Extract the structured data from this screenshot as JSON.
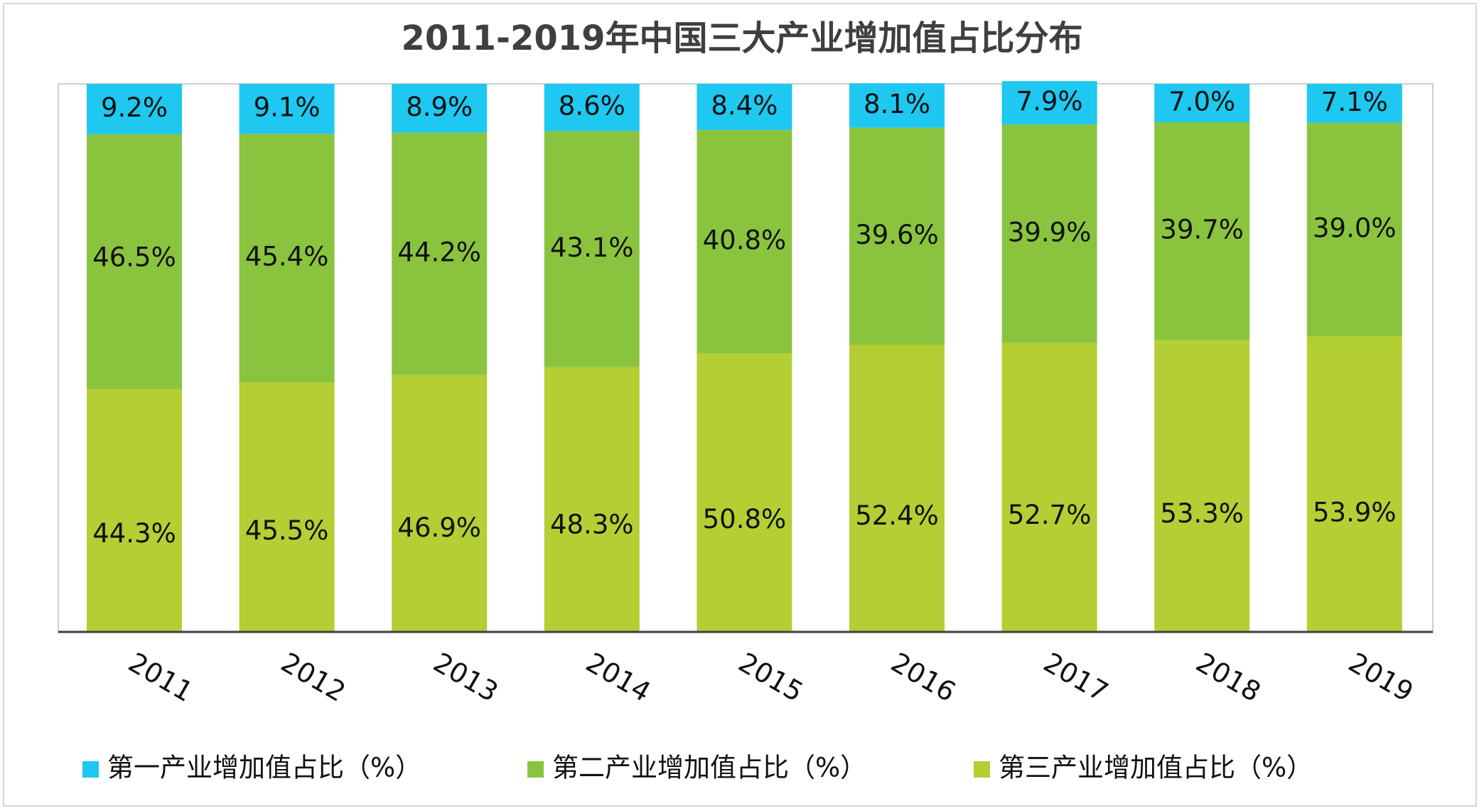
{
  "chart_data": {
    "type": "bar",
    "stacked": true,
    "title": "2011-2019年中国三大产业增加值占比分布",
    "categories": [
      "2011",
      "2012",
      "2013",
      "2014",
      "2015",
      "2016",
      "2017",
      "2018",
      "2019"
    ],
    "series": [
      {
        "name": "第三产业增加值占比（%）",
        "color": "#b3cf33",
        "values": [
          44.3,
          45.5,
          46.9,
          48.3,
          50.8,
          52.4,
          52.7,
          53.3,
          53.9
        ],
        "labels": [
          "44.3%",
          "45.5%",
          "46.9%",
          "48.3%",
          "50.8%",
          "52.4%",
          "52.7%",
          "53.3%",
          "53.9%"
        ]
      },
      {
        "name": "第二产业增加值占比（%）",
        "color": "#8ac43f",
        "values": [
          46.5,
          45.4,
          44.2,
          43.1,
          40.8,
          39.6,
          39.9,
          39.7,
          39.0
        ],
        "labels": [
          "46.5%",
          "45.4%",
          "44.2%",
          "43.1%",
          "40.8%",
          "39.6%",
          "39.9%",
          "39.7%",
          "39.0%"
        ]
      },
      {
        "name": "第一产业增加值占比（%）",
        "color": "#1ec8f0",
        "values": [
          9.2,
          9.1,
          8.9,
          8.6,
          8.4,
          8.1,
          7.9,
          7.0,
          7.1
        ],
        "labels": [
          "9.2%",
          "9.1%",
          "8.9%",
          "8.6%",
          "8.4%",
          "8.1%",
          "7.9%",
          "7.0%",
          "7.1%"
        ]
      }
    ],
    "legend": {
      "position": "bottom",
      "order": [
        "第一产业增加值占比（%）",
        "第二产业增加值占比（%）",
        "第三产业增加值占比（%）"
      ]
    },
    "ylim": [
      0,
      100
    ],
    "grid": false,
    "x_tick_rotation": 30,
    "xlabel": "",
    "ylabel": ""
  }
}
